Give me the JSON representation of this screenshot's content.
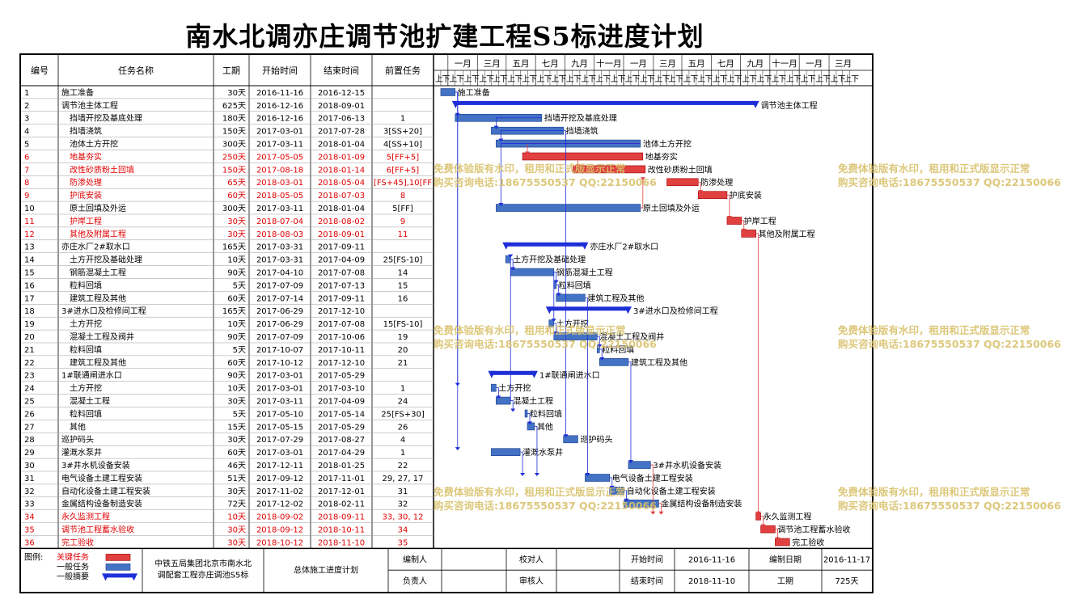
{
  "title": "南水北调亦庄调节池扩建工程S5标进度计划",
  "headers": {
    "id": "编号",
    "name": "任务名称",
    "dur": "工期",
    "start": "开始时间",
    "end": "结束时间",
    "pred": "前置任务"
  },
  "timeline": {
    "months": [
      "一月",
      "三月",
      "五月",
      "七月",
      "九月",
      "十一月",
      "一月",
      "三月",
      "五月",
      "七月",
      "九月",
      "十一月",
      "一月",
      "三月"
    ],
    "halves": [
      "上",
      "下"
    ],
    "start": "2016-11-01",
    "end": "2019-05-01",
    "month_start": "2016-12-01"
  },
  "chart_data": {
    "type": "gantt",
    "tasks": [
      {
        "id": "1",
        "name": "施工准备",
        "dur": "30天",
        "start": "2016-11-16",
        "end": "2016-12-15",
        "pred": "",
        "level": 0,
        "critical": false
      },
      {
        "id": "2",
        "name": "调节池主体工程",
        "dur": "625天",
        "start": "2016-12-16",
        "end": "2018-09-01",
        "pred": "",
        "level": 0,
        "critical": false,
        "summary": true
      },
      {
        "id": "3",
        "name": "挡墙开挖及基底处理",
        "dur": "180天",
        "start": "2016-12-16",
        "end": "2017-06-13",
        "pred": "1",
        "level": 1,
        "critical": false
      },
      {
        "id": "4",
        "name": "挡墙浇筑",
        "dur": "150天",
        "start": "2017-03-01",
        "end": "2017-07-28",
        "pred": "3[SS+20]",
        "level": 1,
        "critical": false
      },
      {
        "id": "5",
        "name": "池体土方开挖",
        "dur": "300天",
        "start": "2017-03-11",
        "end": "2018-01-04",
        "pred": "4[SS+10]",
        "level": 1,
        "critical": false
      },
      {
        "id": "6",
        "name": "地基夯实",
        "dur": "250天",
        "start": "2017-05-05",
        "end": "2018-01-09",
        "pred": "5[FF+5]",
        "level": 1,
        "critical": true
      },
      {
        "id": "7",
        "name": "改性砂质粉土回填",
        "dur": "150天",
        "start": "2017-08-18",
        "end": "2018-01-14",
        "pred": "6[FF+5]",
        "level": 1,
        "critical": true
      },
      {
        "id": "8",
        "name": "防渗处理",
        "dur": "65天",
        "start": "2018-03-01",
        "end": "2018-05-04",
        "pred": "[FS+45],10[FF",
        "level": 1,
        "critical": true
      },
      {
        "id": "9",
        "name": "护底安装",
        "dur": "60天",
        "start": "2018-05-05",
        "end": "2018-07-03",
        "pred": "8",
        "level": 1,
        "critical": true
      },
      {
        "id": "10",
        "name": "原土回填及外运",
        "dur": "300天",
        "start": "2017-03-11",
        "end": "2018-01-04",
        "pred": "5[FF]",
        "level": 1,
        "critical": false
      },
      {
        "id": "11",
        "name": "护岸工程",
        "dur": "30天",
        "start": "2018-07-04",
        "end": "2018-08-02",
        "pred": "9",
        "level": 1,
        "critical": true
      },
      {
        "id": "12",
        "name": "其他及附属工程",
        "dur": "30天",
        "start": "2018-08-03",
        "end": "2018-09-01",
        "pred": "11",
        "level": 1,
        "critical": true
      },
      {
        "id": "13",
        "name": "亦庄水厂2#取水口",
        "dur": "165天",
        "start": "2017-03-31",
        "end": "2017-09-11",
        "pred": "",
        "level": 0,
        "critical": false,
        "summary": true
      },
      {
        "id": "14",
        "name": "土方开挖及基础处理",
        "dur": "10天",
        "start": "2017-03-31",
        "end": "2017-04-09",
        "pred": "25[FS-10]",
        "level": 1,
        "critical": false
      },
      {
        "id": "15",
        "name": "钢筋混凝土工程",
        "dur": "90天",
        "start": "2017-04-10",
        "end": "2017-07-08",
        "pred": "14",
        "level": 1,
        "critical": false
      },
      {
        "id": "16",
        "name": "粒料回填",
        "dur": "5天",
        "start": "2017-07-09",
        "end": "2017-07-13",
        "pred": "15",
        "level": 1,
        "critical": false
      },
      {
        "id": "17",
        "name": "建筑工程及其他",
        "dur": "60天",
        "start": "2017-07-14",
        "end": "2017-09-11",
        "pred": "16",
        "level": 1,
        "critical": false
      },
      {
        "id": "18",
        "name": "3#进水口及检修间工程",
        "dur": "165天",
        "start": "2017-06-29",
        "end": "2017-12-10",
        "pred": "",
        "level": 0,
        "critical": false,
        "summary": true
      },
      {
        "id": "19",
        "name": "土方开挖",
        "dur": "10天",
        "start": "2017-06-29",
        "end": "2017-07-08",
        "pred": "15[FS-10]",
        "level": 1,
        "critical": false
      },
      {
        "id": "20",
        "name": "混凝土工程及阀井",
        "dur": "90天",
        "start": "2017-07-09",
        "end": "2017-10-06",
        "pred": "19",
        "level": 1,
        "critical": false
      },
      {
        "id": "21",
        "name": "粒料回填",
        "dur": "5天",
        "start": "2017-10-07",
        "end": "2017-10-11",
        "pred": "20",
        "level": 1,
        "critical": false
      },
      {
        "id": "22",
        "name": "建筑工程及其他",
        "dur": "60天",
        "start": "2017-10-12",
        "end": "2017-12-10",
        "pred": "21",
        "level": 1,
        "critical": false
      },
      {
        "id": "23",
        "name": "1#联通闸进水口",
        "dur": "90天",
        "start": "2017-03-01",
        "end": "2017-05-29",
        "pred": "",
        "level": 0,
        "critical": false,
        "summary": true
      },
      {
        "id": "24",
        "name": "土方开挖",
        "dur": "10天",
        "start": "2017-03-01",
        "end": "2017-03-10",
        "pred": "1",
        "level": 1,
        "critical": false
      },
      {
        "id": "25",
        "name": "混凝土工程",
        "dur": "30天",
        "start": "2017-03-11",
        "end": "2017-04-09",
        "pred": "24",
        "level": 1,
        "critical": false
      },
      {
        "id": "26",
        "name": "粒料回填",
        "dur": "5天",
        "start": "2017-05-10",
        "end": "2017-05-14",
        "pred": "25[FS+30]",
        "level": 1,
        "critical": false
      },
      {
        "id": "27",
        "name": "其他",
        "dur": "15天",
        "start": "2017-05-15",
        "end": "2017-05-29",
        "pred": "26",
        "level": 1,
        "critical": false
      },
      {
        "id": "28",
        "name": "巡护码头",
        "dur": "30天",
        "start": "2017-07-29",
        "end": "2017-08-27",
        "pred": "4",
        "level": 0,
        "critical": false
      },
      {
        "id": "29",
        "name": "灌溉水泵井",
        "dur": "60天",
        "start": "2017-03-01",
        "end": "2017-04-29",
        "pred": "1",
        "level": 0,
        "critical": false
      },
      {
        "id": "30",
        "name": "3#井水机设备安装",
        "dur": "46天",
        "start": "2017-12-11",
        "end": "2018-01-25",
        "pred": "22",
        "level": 0,
        "critical": false
      },
      {
        "id": "31",
        "name": "电气设备土建工程安装",
        "dur": "51天",
        "start": "2017-09-12",
        "end": "2017-11-01",
        "pred": "29, 27, 17",
        "level": 0,
        "critical": false
      },
      {
        "id": "32",
        "name": "自动化设备土建工程安装",
        "dur": "30天",
        "start": "2017-11-02",
        "end": "2017-12-01",
        "pred": "31",
        "level": 0,
        "critical": false
      },
      {
        "id": "33",
        "name": "金属结构设备制造安装",
        "dur": "72天",
        "start": "2017-12-02",
        "end": "2018-02-11",
        "pred": "32",
        "level": 0,
        "critical": false
      },
      {
        "id": "34",
        "name": "永久监测工程",
        "dur": "10天",
        "start": "2018-09-02",
        "end": "2018-09-11",
        "pred": "33, 30, 12",
        "level": 0,
        "critical": true
      },
      {
        "id": "35",
        "name": "调节池工程蓄水验收",
        "dur": "30天",
        "start": "2018-09-12",
        "end": "2018-10-11",
        "pred": "34",
        "level": 0,
        "critical": true
      },
      {
        "id": "36",
        "name": "完工验收",
        "dur": "30天",
        "start": "2018-10-12",
        "end": "2018-11-10",
        "pred": "35",
        "level": 0,
        "critical": true
      }
    ]
  },
  "legend": {
    "label": "图例:",
    "critical": "关键任务",
    "normal": "一般任务",
    "summary": "一般摘要"
  },
  "footer": {
    "org1": "中铁五局集团北京市南水北",
    "org2": "调配套工程亦庄调池S5标",
    "plan": "总体施工进度计划",
    "editor_label": "编制人",
    "checker_label": "校对人",
    "owner_label": "负责人",
    "reviewer_label": "审核人",
    "start_label": "开始时间",
    "start_value": "2016-11-16",
    "end_label": "结束时间",
    "end_value": "2018-11-10",
    "date_label": "编制日期",
    "date_value": "2016-11-17",
    "dur_label": "工期",
    "dur_value": "725天"
  },
  "watermark": {
    "line1": "免费体验版有水印，租用和正式版显示正常",
    "line2": "购买咨询电话:18675550537 QQ:22150066"
  },
  "colors": {
    "normal": "#4472c4",
    "critical": "#e04040",
    "summary": "#1f2fd8",
    "critical_text": "#e00000"
  }
}
